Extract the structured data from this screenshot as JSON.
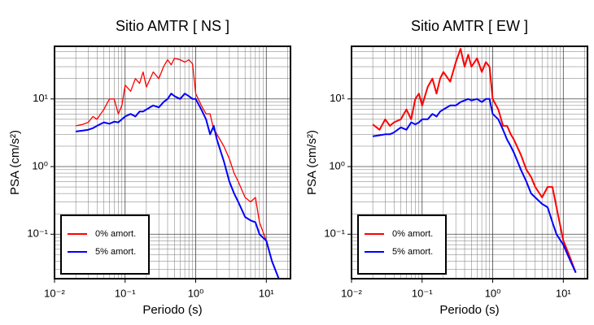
{
  "chart_data": [
    {
      "type": "line",
      "title": "Sitio AMTR [ NS ]",
      "xlabel": "Periodo (s)",
      "ylabel": "PSA (cm/s²)",
      "log_x": true,
      "log_y": true,
      "grid": true,
      "legend": "lower left",
      "xlim": [
        0.01,
        22
      ],
      "ylim": [
        0.022,
        60
      ],
      "xticks": [
        {
          "value": 0.01,
          "label": "10⁻²"
        },
        {
          "value": 0.1,
          "label": "10⁻¹"
        },
        {
          "value": 1,
          "label": "10⁰"
        },
        {
          "value": 10,
          "label": "10¹"
        }
      ],
      "yticks": [
        {
          "value": 0.1,
          "label": "10⁻¹"
        },
        {
          "value": 1,
          "label": "10⁰"
        },
        {
          "value": 10,
          "label": "10¹"
        }
      ],
      "x": [
        0.02,
        0.025,
        0.03,
        0.035,
        0.04,
        0.05,
        0.06,
        0.07,
        0.08,
        0.09,
        0.1,
        0.12,
        0.14,
        0.16,
        0.18,
        0.2,
        0.25,
        0.3,
        0.35,
        0.4,
        0.45,
        0.5,
        0.6,
        0.7,
        0.8,
        0.9,
        1.0,
        1.2,
        1.4,
        1.6,
        1.8,
        2.0,
        2.5,
        3,
        3.5,
        4,
        5,
        6,
        7,
        8,
        10,
        12,
        15
      ],
      "series": [
        {
          "name": "0% amort.",
          "color": "#ff0000",
          "values": [
            4,
            4.2,
            4.5,
            5.5,
            5,
            7,
            10,
            10,
            6,
            8,
            16,
            13,
            20,
            17,
            25,
            15,
            25,
            20,
            30,
            38,
            32,
            40,
            38,
            35,
            38,
            33,
            12,
            8,
            6,
            6,
            3.5,
            3,
            2,
            1.3,
            0.8,
            0.6,
            0.35,
            0.3,
            0.35,
            0.15,
            0.08,
            0.04,
            0.022
          ]
        },
        {
          "name": "5% amort.",
          "color": "#0000ff",
          "values": [
            3.3,
            3.4,
            3.5,
            3.7,
            4,
            4.5,
            4.3,
            4.6,
            4.5,
            5,
            5.5,
            6,
            5.5,
            6.5,
            6.5,
            7,
            8,
            7.5,
            9,
            10,
            12,
            11,
            10,
            12,
            11,
            10,
            10,
            7,
            5,
            3,
            4,
            2.5,
            1.2,
            0.6,
            0.4,
            0.3,
            0.18,
            0.16,
            0.15,
            0.1,
            0.08,
            0.04,
            0.022
          ]
        }
      ]
    },
    {
      "type": "line",
      "title": "Sitio AMTR [ EW ]",
      "xlabel": "Periodo (s)",
      "ylabel": "PSA (cm/s²)",
      "log_x": true,
      "log_y": true,
      "grid": true,
      "legend": "lower left",
      "xlim": [
        0.01,
        22
      ],
      "ylim": [
        0.022,
        60
      ],
      "xticks": [
        {
          "value": 0.01,
          "label": "10⁻²"
        },
        {
          "value": 0.1,
          "label": "10⁻¹"
        },
        {
          "value": 1,
          "label": "10⁰"
        },
        {
          "value": 10,
          "label": "10¹"
        }
      ],
      "yticks": [
        {
          "value": 0.1,
          "label": "10⁻¹"
        },
        {
          "value": 1,
          "label": "10⁰"
        },
        {
          "value": 10,
          "label": "10¹"
        }
      ],
      "x": [
        0.02,
        0.025,
        0.03,
        0.035,
        0.04,
        0.05,
        0.06,
        0.07,
        0.08,
        0.09,
        0.1,
        0.12,
        0.14,
        0.16,
        0.18,
        0.2,
        0.25,
        0.3,
        0.35,
        0.4,
        0.45,
        0.5,
        0.6,
        0.7,
        0.8,
        0.9,
        1.0,
        1.2,
        1.4,
        1.6,
        1.8,
        2.0,
        2.5,
        3,
        3.5,
        4,
        5,
        6,
        7,
        8,
        10,
        12,
        15
      ],
      "series": [
        {
          "name": "0% amort.",
          "color": "#ff0000",
          "values": [
            4.2,
            3.5,
            5,
            4,
            4.5,
            5,
            7,
            5,
            10,
            12,
            8,
            15,
            20,
            12,
            20,
            25,
            18,
            35,
            55,
            30,
            45,
            30,
            40,
            25,
            35,
            30,
            10,
            7,
            4,
            4,
            3,
            2.5,
            1.5,
            0.9,
            0.7,
            0.5,
            0.35,
            0.5,
            0.5,
            0.25,
            0.08,
            0.05,
            0.027
          ]
        },
        {
          "name": "5% amort.",
          "color": "#0000ff",
          "values": [
            2.8,
            2.9,
            3,
            3,
            3.2,
            3.8,
            3.5,
            4.5,
            4.2,
            4.5,
            5,
            5,
            6,
            5.5,
            6.5,
            7,
            8,
            8,
            9,
            9.5,
            10,
            9.5,
            10,
            9,
            10,
            10,
            6,
            5,
            3.5,
            2.5,
            2,
            1.6,
            0.9,
            0.6,
            0.4,
            0.35,
            0.28,
            0.25,
            0.15,
            0.1,
            0.07,
            0.045,
            0.027
          ]
        }
      ]
    }
  ]
}
